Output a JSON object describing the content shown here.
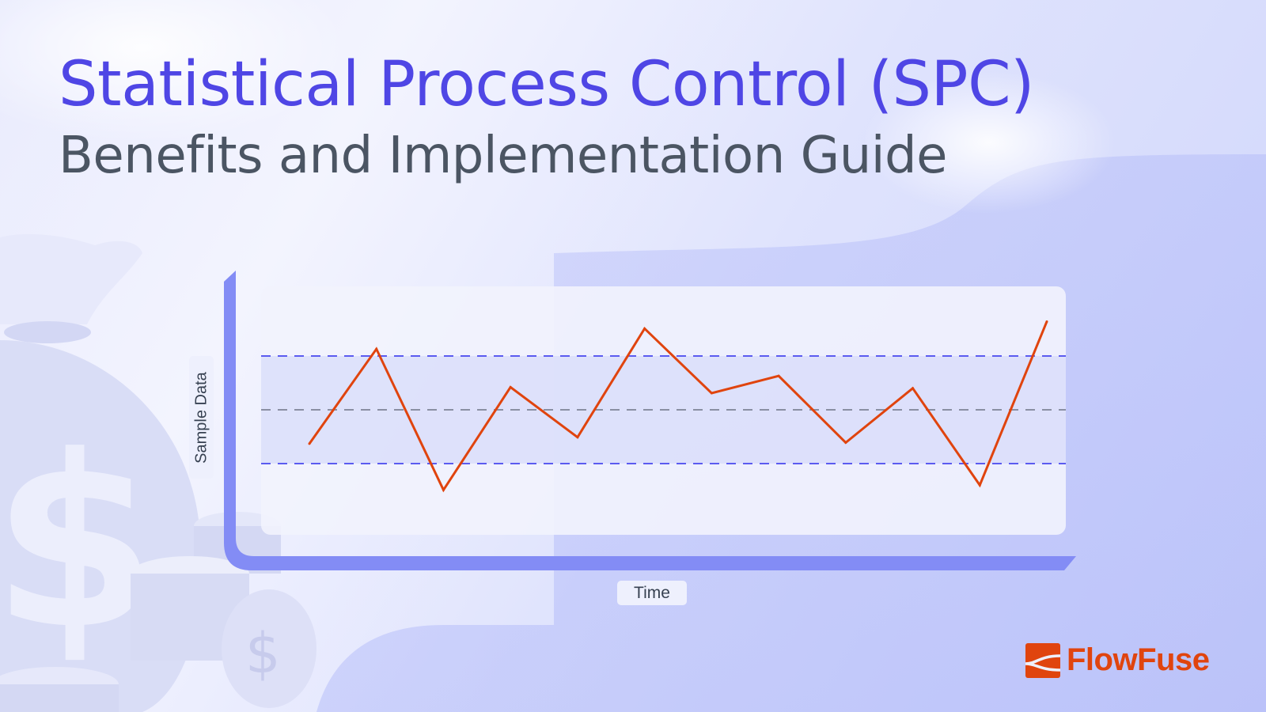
{
  "header": {
    "title": "Statistical Process Control (SPC)",
    "subtitle": "Benefits and Implementation Guide"
  },
  "brand": {
    "name": "FlowFuse",
    "color": "#e0440e"
  },
  "chart_data": {
    "type": "line",
    "title": "",
    "xlabel": "Time",
    "ylabel": "Sample Data",
    "x": [
      1,
      2,
      3,
      4,
      5,
      6,
      7,
      8,
      9,
      10,
      11,
      12
    ],
    "series": [
      {
        "values": [
          -0.63,
          1.13,
          -1.49,
          0.42,
          -0.51,
          1.51,
          0.31,
          0.63,
          -0.61,
          0.4,
          -1.4,
          1.64
        ],
        "color": "#e0440e"
      }
    ],
    "reference_lines": [
      {
        "role": "upper control limit",
        "value": 1,
        "style": "dashed",
        "color": "#5b5bf0"
      },
      {
        "role": "center line",
        "value": 0,
        "style": "dashed",
        "color": "#8a8fa3"
      },
      {
        "role": "lower control limit",
        "value": -1,
        "style": "dashed",
        "color": "#5b5bf0"
      }
    ],
    "ylim": [
      -2.1,
      2.3
    ],
    "grid": false,
    "tick_labels": false,
    "legend": "none"
  },
  "decor": {
    "icons": [
      "money-bag-icon",
      "dollar-sign-icon",
      "coin-stack-icon"
    ]
  }
}
